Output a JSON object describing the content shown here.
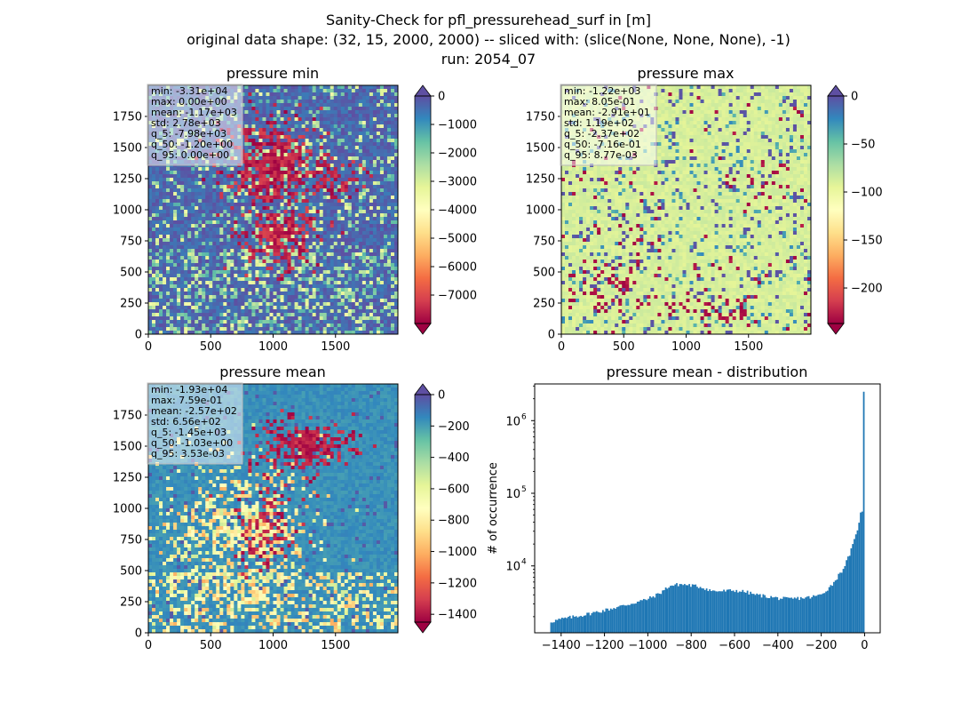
{
  "suptitle": [
    "Sanity-Check for pfl_pressurehead_surf in [m]",
    "original data shape: (32, 15, 2000, 2000) -- sliced with: (slice(None, None, None), -1)",
    "run: 2054_07"
  ],
  "colors": {
    "spectral": [
      "#9e0142",
      "#d53e4f",
      "#f46d43",
      "#fdae61",
      "#fee08b",
      "#ffffbf",
      "#e6f598",
      "#abdda4",
      "#66c2a5",
      "#3288bd",
      "#5e4fa2"
    ],
    "hist_bar": "#1f77b4",
    "stats_box_bg": "#ffffff",
    "stats_box_edge": "#bbbbbb"
  },
  "chart_data": [
    {
      "type": "heatmap",
      "title": "pressure min",
      "xlim": [
        0,
        2000
      ],
      "ylim": [
        0,
        2000
      ],
      "xticks": [
        0,
        500,
        1000,
        1500
      ],
      "yticks": [
        0,
        250,
        500,
        750,
        1000,
        1250,
        1500,
        1750
      ],
      "colorbar": {
        "vmin": -8000,
        "vmax": 0,
        "ticks": [
          0,
          -1000,
          -2000,
          -3000,
          -4000,
          -5000,
          -6000,
          -7000
        ],
        "extend": "both"
      },
      "stats": [
        "min: -3.31e+04",
        "max: 0.00e+00",
        "mean: -1.17e+03",
        "std: 2.78e+03",
        "q_5: -7.98e+03",
        "q_50: -1.20e+00",
        "q_95: 0.00e+00"
      ],
      "pattern": "mostly near 0 (blue/purple), dense deeply negative region centered around x~1000, y~1000-1750"
    },
    {
      "type": "heatmap",
      "title": "pressure max",
      "xlim": [
        0,
        2000
      ],
      "ylim": [
        0,
        2000
      ],
      "xticks": [
        0,
        500,
        1000,
        1500
      ],
      "yticks": [
        0,
        250,
        500,
        750,
        1000,
        1250,
        1500,
        1750
      ],
      "colorbar": {
        "vmin": -237,
        "vmax": 0,
        "ticks": [
          0,
          -50,
          -100,
          -150,
          -200
        ],
        "extend": "both"
      },
      "stats": [
        "min: -1.22e+03",
        "max: 8.05e-01",
        "mean: -2.91e+01",
        "std: 1.19e+02",
        "q_5: -2.37e+02",
        "q_50: -7.16e-01",
        "q_95: 8.77e-03"
      ],
      "pattern": "mostly near 0 (pale yellow), scattered dark red patches in lower left and scattered purple pixels"
    },
    {
      "type": "heatmap",
      "title": "pressure mean",
      "xlim": [
        0,
        2000
      ],
      "ylim": [
        0,
        2000
      ],
      "xticks": [
        0,
        500,
        1000,
        1500
      ],
      "yticks": [
        0,
        250,
        500,
        750,
        1000,
        1250,
        1500,
        1750
      ],
      "colorbar": {
        "vmin": -1450,
        "vmax": 0,
        "ticks": [
          0,
          -200,
          -400,
          -600,
          -800,
          -1000,
          -1200,
          -1400
        ],
        "extend": "both"
      },
      "stats": [
        "min: -1.93e+04",
        "max: 7.59e-01",
        "mean: -2.57e+02",
        "std: 6.56e+02",
        "q_5: -1.45e+03",
        "q_50: -1.03e+00",
        "q_95: 3.53e-03"
      ],
      "pattern": "pale yellow background, orange/red regions in center-left, dark red cluster around x~1200, y~1500"
    },
    {
      "type": "bar",
      "title": "pressure mean - distribution",
      "ylabel": "# of occurrence",
      "xlabel": "",
      "yscale": "log",
      "xlim": [
        -1522,
        72
      ],
      "ylim": [
        1200,
        3200000
      ],
      "xticks": [
        -1400,
        -1200,
        -1000,
        -800,
        -600,
        -400,
        -200,
        0
      ],
      "ytick_labels": [
        "10^4",
        "10^5",
        "10^6"
      ],
      "ytick_values": [
        10000,
        100000,
        1000000
      ],
      "bin_edges_range": [
        -1450,
        0
      ],
      "n_bins": 200,
      "profile_x": [
        -1450,
        -1400,
        -1300,
        -1200,
        -1100,
        -1000,
        -950,
        -900,
        -850,
        -800,
        -750,
        -700,
        -650,
        -600,
        -550,
        -500,
        -450,
        -400,
        -350,
        -300,
        -250,
        -200,
        -150,
        -100,
        -80,
        -60,
        -40,
        -30,
        -20,
        -12,
        -8,
        -5,
        -3
      ],
      "profile_y": [
        1700,
        1850,
        2100,
        2450,
        2900,
        3500,
        4100,
        5300,
        5600,
        5400,
        5100,
        4500,
        4500,
        4600,
        4400,
        4000,
        3800,
        3600,
        3500,
        3600,
        3700,
        4000,
        5500,
        9000,
        12000,
        17000,
        26000,
        35000,
        50000,
        60000,
        42000,
        40000,
        45000
      ],
      "spike": {
        "x": 0,
        "value": 2500000
      }
    }
  ]
}
